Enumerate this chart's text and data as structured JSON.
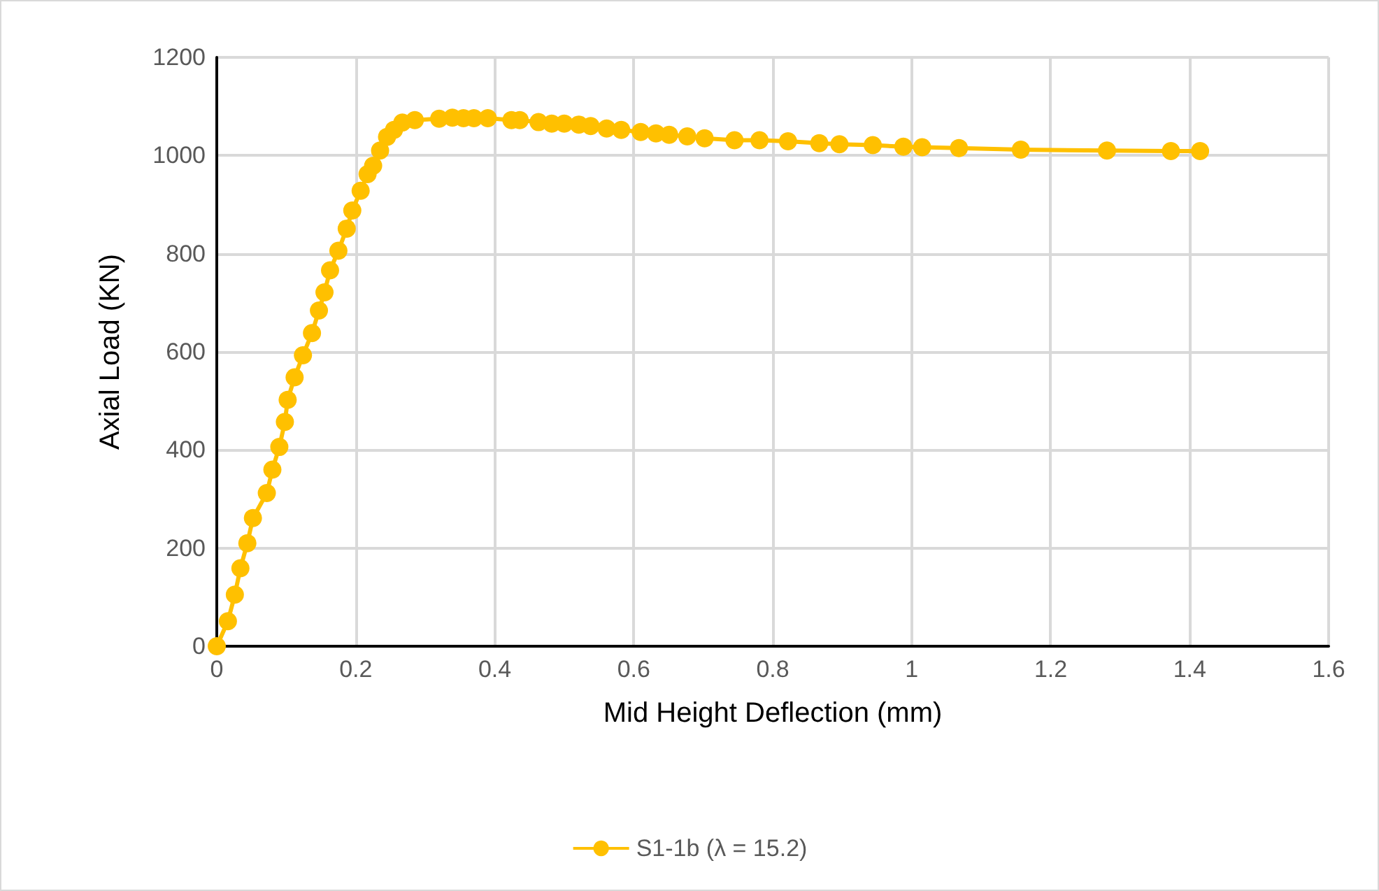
{
  "chart_data": {
    "type": "line",
    "xlabel": "Mid Height Deflection (mm)",
    "ylabel": "Axial Load (KN)",
    "xlim": [
      0,
      1.6
    ],
    "xticks": [
      0,
      0.2,
      0.4,
      0.6,
      0.8,
      1,
      1.2,
      1.4,
      1.6
    ],
    "ylim": [
      0,
      1200
    ],
    "yticks": [
      0,
      200,
      400,
      600,
      800,
      1000,
      1200
    ],
    "grid": true,
    "legend": "bottom",
    "marker": "circle",
    "line_style": "solid",
    "series": [
      {
        "name": "S1-1b (λ = 15.2)",
        "color": "#ffc000",
        "x": [
          0,
          0.016,
          0.026,
          0.034,
          0.044,
          0.052,
          0.072,
          0.08,
          0.09,
          0.098,
          0.102,
          0.112,
          0.124,
          0.137,
          0.147,
          0.155,
          0.163,
          0.175,
          0.187,
          0.195,
          0.207,
          0.217,
          0.225,
          0.235,
          0.245,
          0.255,
          0.267,
          0.285,
          0.32,
          0.339,
          0.355,
          0.37,
          0.39,
          0.424,
          0.436,
          0.463,
          0.482,
          0.5,
          0.521,
          0.538,
          0.561,
          0.582,
          0.61,
          0.632,
          0.651,
          0.677,
          0.702,
          0.745,
          0.781,
          0.822,
          0.867,
          0.896,
          0.944,
          0.988,
          1.015,
          1.068,
          1.157,
          1.281,
          1.373,
          1.415
        ],
        "values": [
          0,
          51,
          105,
          159,
          210,
          261,
          312,
          360,
          406,
          457,
          502,
          548,
          593,
          638,
          684,
          721,
          766,
          806,
          851,
          888,
          928,
          962,
          979,
          1010,
          1038,
          1052,
          1067,
          1072,
          1075,
          1077,
          1076,
          1076,
          1076,
          1072,
          1072,
          1068,
          1065,
          1065,
          1063,
          1060,
          1055,
          1052,
          1048,
          1045,
          1042,
          1039,
          1035,
          1031,
          1031,
          1029,
          1025,
          1023,
          1021,
          1018,
          1017,
          1015,
          1012,
          1010,
          1009,
          1009
        ]
      }
    ]
  }
}
